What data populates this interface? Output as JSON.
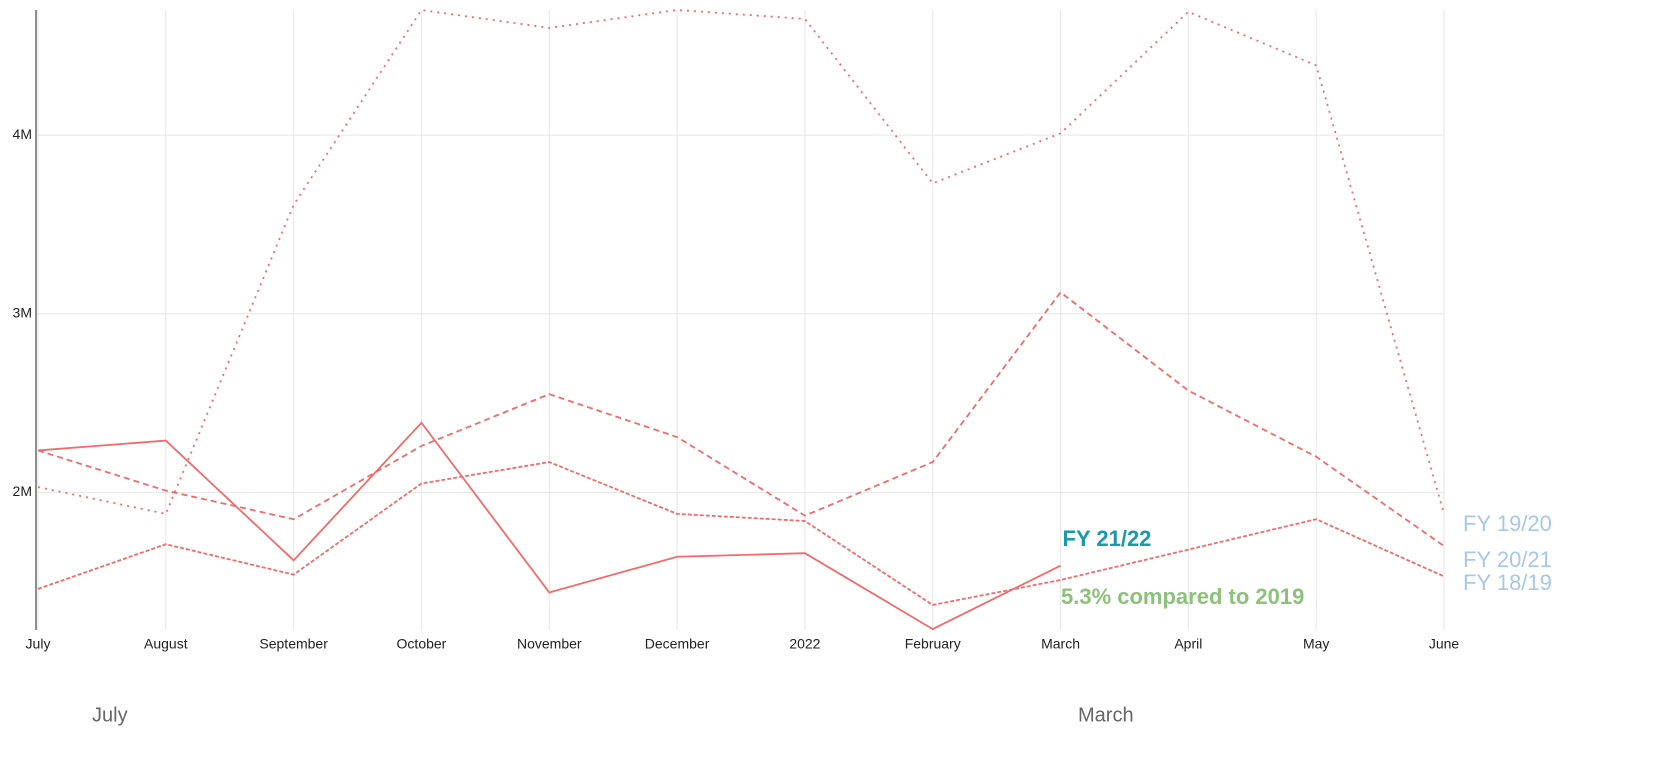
{
  "chart_data": {
    "type": "line",
    "categories": [
      "July",
      "August",
      "September",
      "October",
      "November",
      "December",
      "2022",
      "February",
      "March",
      "April",
      "May",
      "June"
    ],
    "series": [
      {
        "name": "FY 21/22",
        "color": "#f26b6b",
        "label_color": "#1a9aa8",
        "dash": "solid",
        "values": [
          2235000,
          2290000,
          1620000,
          2390000,
          1440000,
          1640000,
          1660000,
          1235000,
          1590000,
          null,
          null,
          null
        ]
      },
      {
        "name": "FY 19/20",
        "color": "#f26b6b",
        "label_color": "#a8c8e8",
        "dash": "dot",
        "values": [
          2030000,
          1880000,
          3610000,
          4700000,
          4600000,
          4700000,
          4650000,
          3730000,
          4010000,
          4690000,
          4390000,
          1880000
        ]
      },
      {
        "name": "FY 20/21",
        "color": "#f26b6b",
        "label_color": "#a8c8e8",
        "dash": "dash",
        "values": [
          2235000,
          2010000,
          1850000,
          2260000,
          2550000,
          2310000,
          1870000,
          2170000,
          3120000,
          2570000,
          2200000,
          1700000
        ]
      },
      {
        "name": "FY 18/19",
        "color": "#f26b6b",
        "label_color": "#a8c8e8",
        "dash": "dashdot",
        "values": [
          1460000,
          1710000,
          1540000,
          2050000,
          2170000,
          1880000,
          1840000,
          1370000,
          1510000,
          1680000,
          1850000,
          1530000
        ]
      }
    ],
    "annotation": {
      "text": "5.3% compared to 2019",
      "color": "#8cc17a"
    },
    "range_labels": [
      "July",
      "March"
    ],
    "ylim": [
      1230000,
      4700000
    ],
    "yticks": [
      {
        "value": 2000000,
        "label": "2M"
      },
      {
        "value": 3000000,
        "label": "3M"
      },
      {
        "value": 4000000,
        "label": "4M"
      }
    ],
    "grid": true
  }
}
